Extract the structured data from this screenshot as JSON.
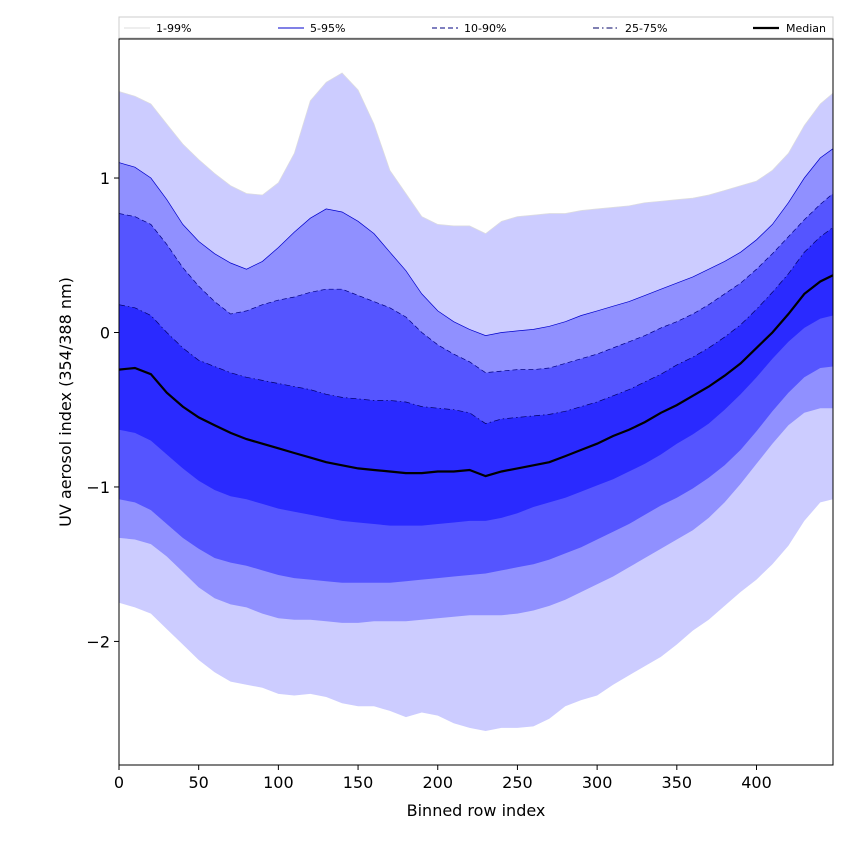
{
  "chart_data": {
    "type": "area",
    "xlabel": "Binned row index",
    "ylabel": "UV aerosol index (354/388 nm)",
    "xlim": [
      0,
      448
    ],
    "ylim": [
      -2.8,
      1.9
    ],
    "x_ticks": [
      0,
      50,
      100,
      150,
      200,
      250,
      300,
      350,
      400
    ],
    "y_ticks": [
      -2,
      -1,
      0,
      1
    ],
    "grid": false,
    "legend_position": "top",
    "x": [
      0,
      10,
      20,
      30,
      40,
      50,
      60,
      70,
      80,
      90,
      100,
      110,
      120,
      130,
      140,
      150,
      160,
      170,
      180,
      190,
      200,
      210,
      220,
      230,
      240,
      250,
      260,
      270,
      280,
      290,
      300,
      310,
      320,
      330,
      340,
      350,
      360,
      370,
      380,
      390,
      400,
      410,
      420,
      430,
      440,
      448
    ],
    "bands": [
      {
        "name": "1-99%",
        "fill": "#ccccff",
        "line_color": "#dddddd",
        "line_style": "solid",
        "lower": [
          -1.75,
          -1.78,
          -1.82,
          -1.92,
          -2.02,
          -2.12,
          -2.2,
          -2.26,
          -2.28,
          -2.3,
          -2.34,
          -2.35,
          -2.34,
          -2.36,
          -2.4,
          -2.42,
          -2.42,
          -2.45,
          -2.49,
          -2.46,
          -2.48,
          -2.53,
          -2.56,
          -2.58,
          -2.56,
          -2.56,
          -2.55,
          -2.5,
          -2.42,
          -2.38,
          -2.35,
          -2.28,
          -2.22,
          -2.16,
          -2.1,
          -2.02,
          -1.93,
          -1.86,
          -1.77,
          -1.68,
          -1.6,
          -1.5,
          -1.38,
          -1.22,
          -1.1,
          -1.08
        ],
        "upper": [
          1.56,
          1.53,
          1.48,
          1.35,
          1.22,
          1.12,
          1.03,
          0.95,
          0.9,
          0.89,
          0.97,
          1.16,
          1.5,
          1.62,
          1.68,
          1.57,
          1.35,
          1.05,
          0.9,
          0.75,
          0.7,
          0.69,
          0.69,
          0.64,
          0.72,
          0.75,
          0.76,
          0.77,
          0.77,
          0.79,
          0.8,
          0.81,
          0.82,
          0.84,
          0.85,
          0.86,
          0.87,
          0.89,
          0.92,
          0.95,
          0.98,
          1.05,
          1.16,
          1.34,
          1.48,
          1.55
        ]
      },
      {
        "name": "5-95%",
        "fill": "#9090ff",
        "line_color": "#0000cc",
        "line_style": "solid",
        "lower": [
          -1.33,
          -1.34,
          -1.37,
          -1.45,
          -1.55,
          -1.65,
          -1.72,
          -1.76,
          -1.78,
          -1.82,
          -1.85,
          -1.86,
          -1.86,
          -1.87,
          -1.88,
          -1.88,
          -1.87,
          -1.87,
          -1.87,
          -1.86,
          -1.85,
          -1.84,
          -1.83,
          -1.83,
          -1.83,
          -1.82,
          -1.8,
          -1.77,
          -1.73,
          -1.68,
          -1.63,
          -1.58,
          -1.52,
          -1.46,
          -1.4,
          -1.34,
          -1.28,
          -1.2,
          -1.1,
          -0.98,
          -0.85,
          -0.72,
          -0.6,
          -0.52,
          -0.49,
          -0.49
        ],
        "upper": [
          1.1,
          1.07,
          1.0,
          0.86,
          0.7,
          0.59,
          0.51,
          0.45,
          0.41,
          0.46,
          0.55,
          0.65,
          0.74,
          0.8,
          0.78,
          0.72,
          0.64,
          0.52,
          0.4,
          0.25,
          0.14,
          0.07,
          0.02,
          -0.02,
          0.0,
          0.01,
          0.02,
          0.04,
          0.07,
          0.11,
          0.14,
          0.17,
          0.2,
          0.24,
          0.28,
          0.32,
          0.36,
          0.41,
          0.46,
          0.52,
          0.6,
          0.7,
          0.84,
          1.0,
          1.13,
          1.19
        ]
      },
      {
        "name": "10-90%",
        "fill": "#5555ff",
        "line_color": "#000080",
        "line_style": "dashed",
        "lower": [
          -1.08,
          -1.1,
          -1.15,
          -1.24,
          -1.33,
          -1.4,
          -1.46,
          -1.49,
          -1.51,
          -1.54,
          -1.57,
          -1.59,
          -1.6,
          -1.61,
          -1.62,
          -1.62,
          -1.62,
          -1.62,
          -1.61,
          -1.6,
          -1.59,
          -1.58,
          -1.57,
          -1.56,
          -1.54,
          -1.52,
          -1.5,
          -1.47,
          -1.43,
          -1.39,
          -1.34,
          -1.29,
          -1.24,
          -1.18,
          -1.12,
          -1.07,
          -1.01,
          -0.94,
          -0.86,
          -0.76,
          -0.64,
          -0.51,
          -0.39,
          -0.29,
          -0.23,
          -0.22
        ],
        "upper": [
          0.77,
          0.75,
          0.7,
          0.57,
          0.42,
          0.3,
          0.2,
          0.12,
          0.14,
          0.18,
          0.21,
          0.23,
          0.26,
          0.28,
          0.28,
          0.24,
          0.2,
          0.16,
          0.1,
          0.0,
          -0.08,
          -0.14,
          -0.19,
          -0.26,
          -0.25,
          -0.24,
          -0.24,
          -0.23,
          -0.2,
          -0.17,
          -0.14,
          -0.1,
          -0.06,
          -0.02,
          0.03,
          0.07,
          0.12,
          0.18,
          0.25,
          0.32,
          0.41,
          0.51,
          0.62,
          0.73,
          0.83,
          0.9
        ]
      },
      {
        "name": "25-75%",
        "fill": "#2a2aff",
        "line_color": "#000066",
        "line_style": "dashdot",
        "lower": [
          -0.63,
          -0.65,
          -0.7,
          -0.79,
          -0.88,
          -0.96,
          -1.02,
          -1.06,
          -1.08,
          -1.11,
          -1.14,
          -1.16,
          -1.18,
          -1.2,
          -1.22,
          -1.23,
          -1.24,
          -1.25,
          -1.25,
          -1.25,
          -1.24,
          -1.23,
          -1.22,
          -1.22,
          -1.2,
          -1.17,
          -1.13,
          -1.1,
          -1.07,
          -1.03,
          -0.99,
          -0.95,
          -0.9,
          -0.85,
          -0.79,
          -0.72,
          -0.66,
          -0.59,
          -0.5,
          -0.4,
          -0.29,
          -0.17,
          -0.06,
          0.03,
          0.09,
          0.11
        ],
        "upper": [
          0.18,
          0.16,
          0.11,
          0.0,
          -0.1,
          -0.18,
          -0.22,
          -0.26,
          -0.29,
          -0.31,
          -0.33,
          -0.35,
          -0.37,
          -0.4,
          -0.42,
          -0.43,
          -0.44,
          -0.44,
          -0.45,
          -0.48,
          -0.49,
          -0.5,
          -0.52,
          -0.59,
          -0.56,
          -0.55,
          -0.54,
          -0.53,
          -0.51,
          -0.48,
          -0.45,
          -0.41,
          -0.37,
          -0.32,
          -0.27,
          -0.21,
          -0.16,
          -0.1,
          -0.03,
          0.05,
          0.15,
          0.26,
          0.38,
          0.52,
          0.62,
          0.68
        ]
      }
    ],
    "median": {
      "name": "Median",
      "color": "#000000",
      "values": [
        -0.24,
        -0.23,
        -0.27,
        -0.39,
        -0.48,
        -0.55,
        -0.6,
        -0.65,
        -0.69,
        -0.72,
        -0.75,
        -0.78,
        -0.81,
        -0.84,
        -0.86,
        -0.88,
        -0.89,
        -0.9,
        -0.91,
        -0.91,
        -0.9,
        -0.9,
        -0.89,
        -0.93,
        -0.9,
        -0.88,
        -0.86,
        -0.84,
        -0.8,
        -0.76,
        -0.72,
        -0.67,
        -0.63,
        -0.58,
        -0.52,
        -0.47,
        -0.41,
        -0.35,
        -0.28,
        -0.2,
        -0.1,
        0.0,
        0.12,
        0.25,
        0.33,
        0.37
      ]
    },
    "legend": [
      "1-99%",
      "5-95%",
      "10-90%",
      "25-75%",
      "Median"
    ]
  }
}
